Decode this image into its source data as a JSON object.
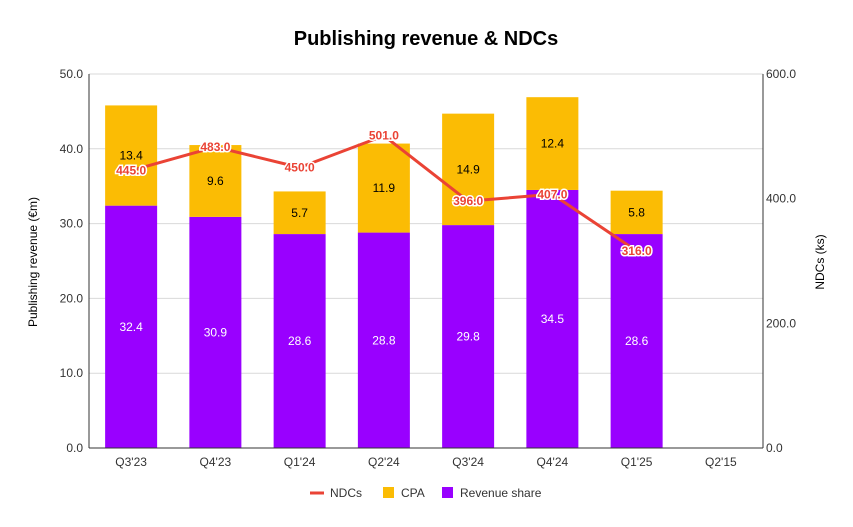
{
  "chart_data": {
    "type": "bar",
    "stacked": true,
    "title": "Publishing revenue & NDCs",
    "categories": [
      "Q3'23",
      "Q4'23",
      "Q1'24",
      "Q2'24",
      "Q3'24",
      "Q4'24",
      "Q1'25",
      "Q2'15"
    ],
    "series": [
      {
        "name": "Revenue share",
        "type": "bar",
        "axis": "left",
        "color": "#9900ff",
        "values": [
          32.4,
          30.9,
          28.6,
          28.8,
          29.8,
          34.5,
          28.6,
          null
        ],
        "labels": [
          "32.4",
          "30.9",
          "28.6",
          "28.8",
          "29.8",
          "34.5",
          "28.6",
          ""
        ]
      },
      {
        "name": "CPA",
        "type": "bar",
        "axis": "left",
        "color": "#fbbc04",
        "values": [
          13.4,
          9.6,
          5.7,
          11.9,
          14.9,
          12.4,
          5.8,
          null
        ],
        "labels": [
          "13.4",
          "9.6",
          "5.7",
          "11.9",
          "14.9",
          "12.4",
          "5.8",
          ""
        ]
      },
      {
        "name": "NDCs",
        "type": "line",
        "axis": "right",
        "color": "#ea4335",
        "values": [
          445.0,
          483.0,
          450.0,
          501.0,
          396.0,
          407.0,
          316.0,
          null
        ],
        "labels": [
          "445.0",
          "483.0",
          "450.0",
          "501.0",
          "396.0",
          "407.0",
          "316.0",
          ""
        ]
      }
    ],
    "y_left": {
      "label": "Publishing revenue (€m)",
      "range": [
        0,
        50
      ],
      "ticks": [
        "0.0",
        "10.0",
        "20.0",
        "30.0",
        "40.0",
        "50.0"
      ]
    },
    "y_right": {
      "label": "NDCs (ks)",
      "range": [
        0,
        600
      ],
      "ticks": [
        "0.0",
        "200.0",
        "400.0",
        "600.0"
      ]
    },
    "legend": {
      "position": "bottom",
      "order": [
        "NDCs",
        "CPA",
        "Revenue share"
      ]
    },
    "grid": true
  }
}
